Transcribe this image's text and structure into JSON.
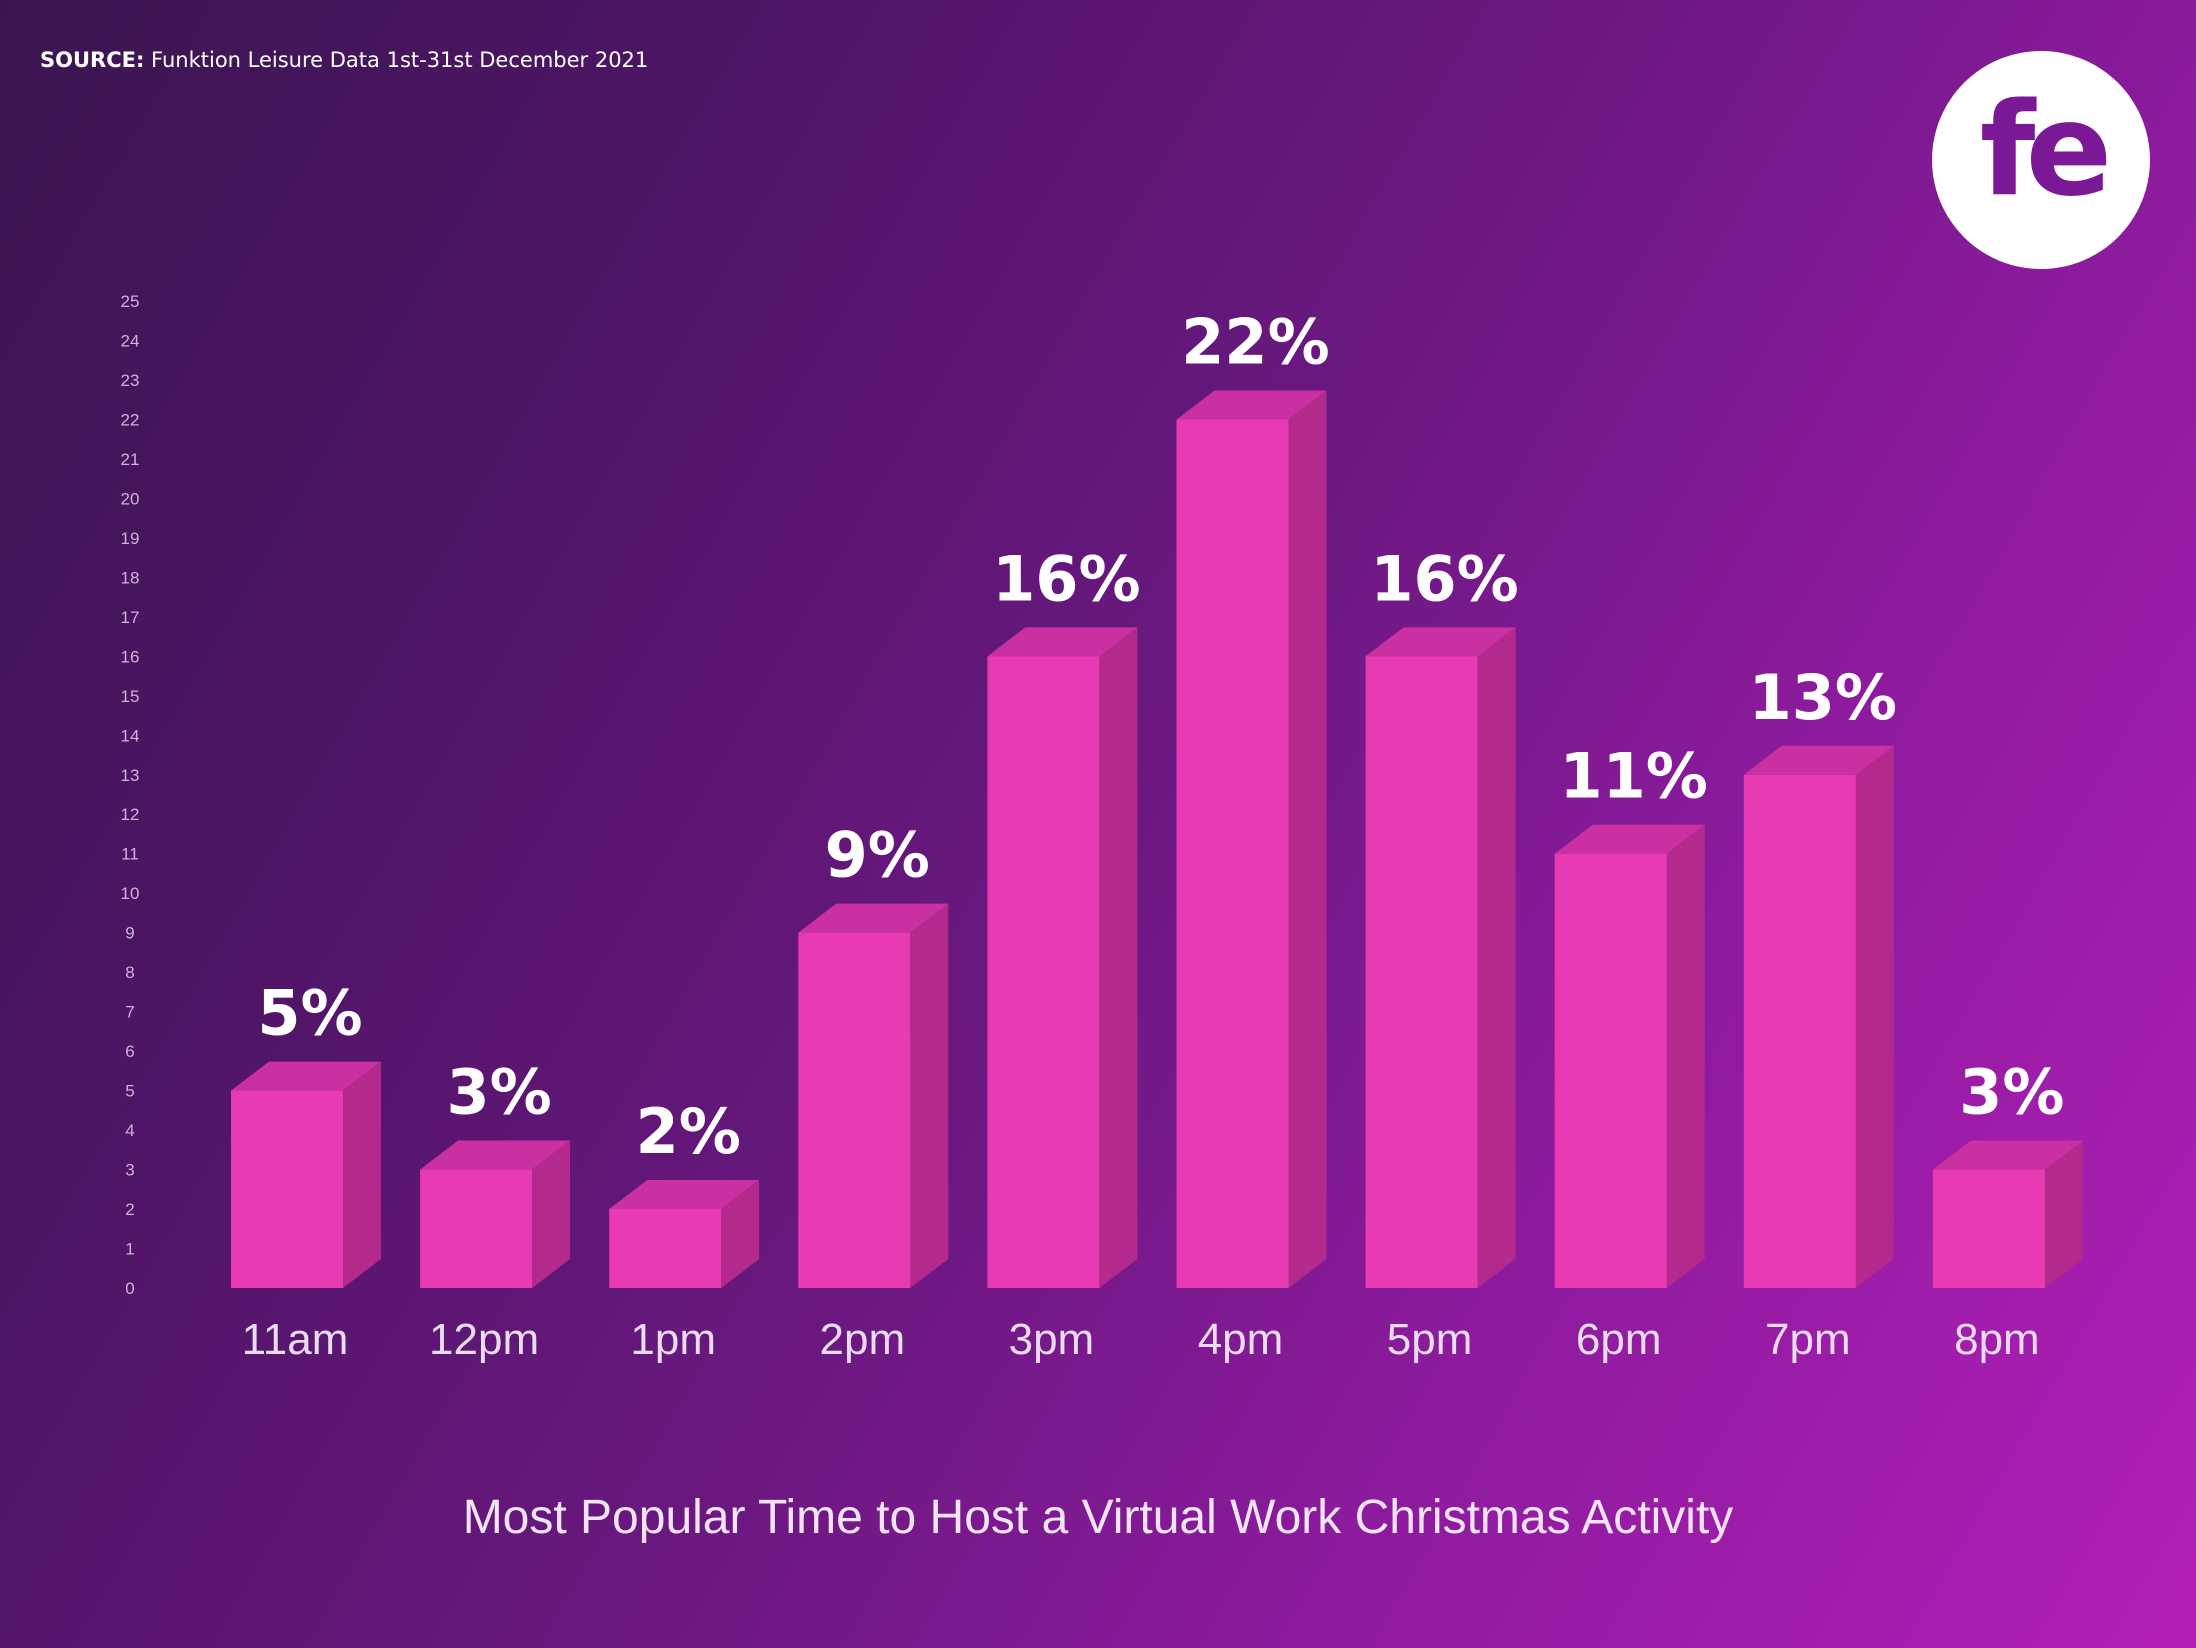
{
  "source": {
    "label": "SOURCE:",
    "text": "Funktion Leisure Data 1st-31st December 2021"
  },
  "logo": {
    "text": "fe"
  },
  "chart_data": {
    "type": "bar",
    "title": "Most Popular Time to Host a Virtual Work Christmas Activity",
    "xlabel": "",
    "ylabel": "",
    "ylim": [
      0,
      25
    ],
    "yticks": [
      0,
      1,
      2,
      3,
      4,
      5,
      6,
      7,
      8,
      9,
      10,
      11,
      12,
      13,
      14,
      15,
      16,
      17,
      18,
      19,
      20,
      21,
      22,
      23,
      24,
      25
    ],
    "categories": [
      "11am",
      "12pm",
      "1pm",
      "2pm",
      "3pm",
      "4pm",
      "5pm",
      "6pm",
      "7pm",
      "8pm"
    ],
    "values": [
      5,
      3,
      2,
      9,
      16,
      22,
      16,
      11,
      13,
      3
    ],
    "data_labels": [
      "5%",
      "3%",
      "2%",
      "9%",
      "16%",
      "22%",
      "16%",
      "11%",
      "13%",
      "3%"
    ],
    "grid": false,
    "legend": "none",
    "style": "3d-bar"
  },
  "colors": {
    "bar_front": "#e73ab3",
    "bar_side": "#b32a8c",
    "bar_top": "#cb30a2",
    "logo": "#7a1896"
  }
}
